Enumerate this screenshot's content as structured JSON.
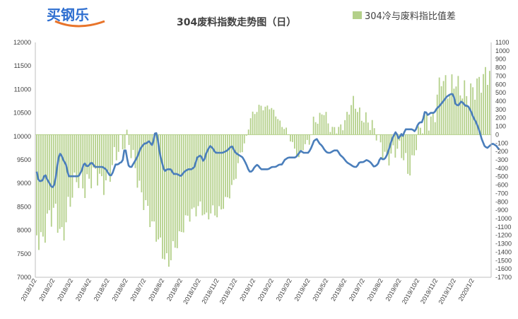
{
  "logo": {
    "text": "买钢乐",
    "color": "#2f6fd0"
  },
  "chart_data": {
    "type": "bar+line",
    "title": "304废料指数走势图（日）",
    "legend": {
      "position": "top-right",
      "entries": [
        "304冷与废料指比值差"
      ]
    },
    "grid": false,
    "x_tick_labels": [
      "2018/1/2",
      "2018/2/2",
      "2018/3/2",
      "2018/4/2",
      "2018/5/2",
      "2018/6/2",
      "2018/7/2",
      "2018/8/2",
      "2018/9/2",
      "2018/10/2",
      "2018/11/2",
      "2018/12/2",
      "2019/1/2",
      "2019/2/2",
      "2019/3/2",
      "2019/4/2",
      "2019/5/2",
      "2019/6/2",
      "2019/7/2",
      "2019/8/2",
      "2019/9/2",
      "2019/10/2",
      "2019/11/2",
      "2019/12/2",
      "2020/1/2"
    ],
    "left_axis": {
      "ylim": [
        7000,
        12000
      ],
      "ticks": [
        7000,
        7500,
        8000,
        8500,
        9000,
        9500,
        10000,
        10500,
        11000,
        11500,
        12000
      ]
    },
    "right_axis": {
      "ylim": [
        -1700,
        1100
      ],
      "ticks": [
        1100,
        1000,
        900,
        800,
        700,
        600,
        500,
        400,
        300,
        200,
        100,
        0,
        -100,
        -200,
        -300,
        -400,
        -500,
        -600,
        -700,
        -800,
        -900,
        -1000,
        -1100,
        -1200,
        -1300,
        -1400,
        -1500,
        -1600,
        -1700
      ]
    },
    "series": [
      {
        "name": "304冷与废料指比值差",
        "kind": "bar",
        "axis": "right",
        "color": "#b4d08a",
        "anchors": [
          [
            0,
            -1200
          ],
          [
            0.3,
            -1300
          ],
          [
            0.6,
            -1000
          ],
          [
            1.0,
            -900
          ],
          [
            1.4,
            -1250
          ],
          [
            1.8,
            -800
          ],
          [
            2.2,
            -500
          ],
          [
            2.6,
            -650
          ],
          [
            3.0,
            -500
          ],
          [
            3.3,
            -450
          ],
          [
            3.6,
            -600
          ],
          [
            3.9,
            -550
          ],
          [
            4.2,
            -300
          ],
          [
            4.5,
            -150
          ],
          [
            4.8,
            -100
          ],
          [
            5.0,
            -50
          ],
          [
            5.2,
            -200
          ],
          [
            5.4,
            -400
          ],
          [
            5.7,
            -700
          ],
          [
            6.0,
            -850
          ],
          [
            6.3,
            -1050
          ],
          [
            6.6,
            -1200
          ],
          [
            6.9,
            -1400
          ],
          [
            7.2,
            -1550
          ],
          [
            7.5,
            -1350
          ],
          [
            7.8,
            -1250
          ],
          [
            8.1,
            -1050
          ],
          [
            8.4,
            -950
          ],
          [
            8.7,
            -900
          ],
          [
            9.0,
            -850
          ],
          [
            9.3,
            -1000
          ],
          [
            9.6,
            -900
          ],
          [
            9.9,
            -950
          ],
          [
            10.2,
            -850
          ],
          [
            10.6,
            -700
          ],
          [
            10.9,
            -500
          ],
          [
            11.2,
            -200
          ],
          [
            11.5,
            -50
          ],
          [
            11.7,
            200
          ],
          [
            11.9,
            250
          ],
          [
            12.1,
            300
          ],
          [
            12.3,
            350
          ],
          [
            12.5,
            300
          ],
          [
            12.7,
            350
          ],
          [
            12.9,
            300
          ],
          [
            13.1,
            250
          ],
          [
            13.3,
            150
          ],
          [
            13.5,
            100
          ],
          [
            13.7,
            50
          ],
          [
            13.85,
            -20
          ],
          [
            14.0,
            -100
          ],
          [
            14.2,
            -200
          ],
          [
            14.4,
            -300
          ],
          [
            14.6,
            -150
          ],
          [
            14.8,
            -100
          ],
          [
            15.0,
            -80
          ],
          [
            15.2,
            200
          ],
          [
            15.4,
            150
          ],
          [
            15.6,
            250
          ],
          [
            15.8,
            280
          ],
          [
            16.0,
            120
          ],
          [
            16.2,
            50
          ],
          [
            16.4,
            80
          ],
          [
            16.6,
            60
          ],
          [
            16.8,
            120
          ],
          [
            17.0,
            200
          ],
          [
            17.2,
            350
          ],
          [
            17.4,
            400
          ],
          [
            17.6,
            300
          ],
          [
            17.8,
            200
          ],
          [
            18.0,
            200
          ],
          [
            18.2,
            150
          ],
          [
            18.4,
            100
          ],
          [
            18.6,
            40
          ],
          [
            18.8,
            -100
          ],
          [
            19.0,
            -200
          ],
          [
            19.2,
            -300
          ],
          [
            19.4,
            -250
          ],
          [
            19.6,
            -200
          ],
          [
            19.8,
            -150
          ],
          [
            20.0,
            -200
          ],
          [
            20.2,
            -300
          ],
          [
            20.4,
            -450
          ],
          [
            20.6,
            -350
          ],
          [
            20.8,
            -100
          ],
          [
            21.0,
            50
          ],
          [
            21.2,
            150
          ],
          [
            21.4,
            200
          ],
          [
            21.6,
            150
          ],
          [
            21.8,
            200
          ],
          [
            22.0,
            500
          ],
          [
            22.2,
            700
          ],
          [
            22.4,
            600
          ],
          [
            22.6,
            500
          ],
          [
            22.8,
            600
          ],
          [
            23.0,
            650
          ],
          [
            23.2,
            500
          ],
          [
            23.4,
            550
          ],
          [
            23.6,
            450
          ],
          [
            23.8,
            500
          ],
          [
            24.0,
            550
          ],
          [
            24.2,
            600
          ],
          [
            24.4,
            650
          ],
          [
            24.6,
            700
          ],
          [
            24.8,
            750
          ]
        ]
      },
      {
        "name": "304废料指数",
        "kind": "line",
        "axis": "left",
        "color": "#4a7ebb",
        "anchors": [
          [
            0,
            9250
          ],
          [
            0.1,
            9050
          ],
          [
            0.3,
            9050
          ],
          [
            0.45,
            9200
          ],
          [
            0.55,
            9100
          ],
          [
            0.7,
            9000
          ],
          [
            0.85,
            8900
          ],
          [
            1.0,
            9000
          ],
          [
            1.1,
            9300
          ],
          [
            1.2,
            9550
          ],
          [
            1.3,
            9650
          ],
          [
            1.45,
            9500
          ],
          [
            1.6,
            9400
          ],
          [
            1.75,
            9150
          ],
          [
            2.0,
            9150
          ],
          [
            2.3,
            9150
          ],
          [
            2.5,
            9300
          ],
          [
            2.6,
            9450
          ],
          [
            2.75,
            9350
          ],
          [
            2.9,
            9400
          ],
          [
            3.0,
            9450
          ],
          [
            3.2,
            9350
          ],
          [
            3.4,
            9350
          ],
          [
            3.6,
            9350
          ],
          [
            3.8,
            9300
          ],
          [
            3.95,
            9200
          ],
          [
            4.05,
            9150
          ],
          [
            4.2,
            9250
          ],
          [
            4.3,
            9400
          ],
          [
            4.45,
            9400
          ],
          [
            4.6,
            9450
          ],
          [
            4.7,
            9450
          ],
          [
            4.8,
            9700
          ],
          [
            4.9,
            9700
          ],
          [
            5.0,
            9400
          ],
          [
            5.1,
            9350
          ],
          [
            5.2,
            9350
          ],
          [
            5.35,
            9450
          ],
          [
            5.5,
            9550
          ],
          [
            5.7,
            9750
          ],
          [
            5.9,
            9850
          ],
          [
            6.0,
            9850
          ],
          [
            6.15,
            9900
          ],
          [
            6.25,
            9850
          ],
          [
            6.35,
            9800
          ],
          [
            6.5,
            10100
          ],
          [
            6.6,
            10050
          ],
          [
            6.7,
            9750
          ],
          [
            6.8,
            9550
          ],
          [
            6.9,
            9400
          ],
          [
            7.0,
            9250
          ],
          [
            7.15,
            9300
          ],
          [
            7.35,
            9300
          ],
          [
            7.5,
            9200
          ],
          [
            7.7,
            9200
          ],
          [
            7.9,
            9150
          ],
          [
            8.1,
            9250
          ],
          [
            8.3,
            9300
          ],
          [
            8.5,
            9300
          ],
          [
            8.65,
            9350
          ],
          [
            8.8,
            9550
          ],
          [
            9.0,
            9600
          ],
          [
            9.15,
            9450
          ],
          [
            9.3,
            9650
          ],
          [
            9.5,
            9800
          ],
          [
            9.65,
            9750
          ],
          [
            9.8,
            9650
          ],
          [
            10.0,
            9650
          ],
          [
            10.2,
            9650
          ],
          [
            10.45,
            9700
          ],
          [
            10.7,
            9800
          ],
          [
            10.9,
            9650
          ],
          [
            11.1,
            9600
          ],
          [
            11.3,
            9550
          ],
          [
            11.5,
            9400
          ],
          [
            11.65,
            9250
          ],
          [
            11.8,
            9250
          ],
          [
            11.95,
            9350
          ],
          [
            12.1,
            9400
          ],
          [
            12.3,
            9300
          ],
          [
            12.5,
            9300
          ],
          [
            12.7,
            9300
          ],
          [
            12.9,
            9350
          ],
          [
            13.1,
            9350
          ],
          [
            13.3,
            9400
          ],
          [
            13.45,
            9400
          ],
          [
            13.6,
            9500
          ],
          [
            13.8,
            9550
          ],
          [
            14.0,
            9550
          ],
          [
            14.2,
            9550
          ],
          [
            14.4,
            9650
          ],
          [
            14.5,
            9700
          ],
          [
            14.6,
            9650
          ],
          [
            14.75,
            9650
          ],
          [
            14.9,
            9650
          ],
          [
            15.05,
            9750
          ],
          [
            15.2,
            9900
          ],
          [
            15.35,
            9950
          ],
          [
            15.5,
            9850
          ],
          [
            15.65,
            9800
          ],
          [
            15.8,
            9700
          ],
          [
            15.95,
            9650
          ],
          [
            16.1,
            9650
          ],
          [
            16.3,
            9700
          ],
          [
            16.5,
            9700
          ],
          [
            16.65,
            9600
          ],
          [
            16.8,
            9550
          ],
          [
            17.0,
            9450
          ],
          [
            17.2,
            9400
          ],
          [
            17.4,
            9350
          ],
          [
            17.55,
            9350
          ],
          [
            17.7,
            9450
          ],
          [
            17.9,
            9450
          ],
          [
            18.1,
            9500
          ],
          [
            18.3,
            9450
          ],
          [
            18.5,
            9350
          ],
          [
            18.7,
            9400
          ],
          [
            18.85,
            9550
          ],
          [
            19.0,
            9500
          ],
          [
            19.15,
            9550
          ],
          [
            19.3,
            9700
          ],
          [
            19.45,
            9900
          ],
          [
            19.55,
            10000
          ],
          [
            19.7,
            10100
          ],
          [
            19.85,
            9950
          ],
          [
            20.0,
            10050
          ],
          [
            20.1,
            10000
          ],
          [
            20.2,
            10150
          ],
          [
            20.4,
            10150
          ],
          [
            20.6,
            10150
          ],
          [
            20.75,
            10100
          ],
          [
            20.9,
            10250
          ],
          [
            21.0,
            10300
          ],
          [
            21.15,
            10300
          ],
          [
            21.3,
            10550
          ],
          [
            21.45,
            10450
          ],
          [
            21.6,
            10500
          ],
          [
            21.8,
            10500
          ],
          [
            21.95,
            10600
          ],
          [
            22.1,
            10650
          ],
          [
            22.3,
            10750
          ],
          [
            22.5,
            10850
          ],
          [
            22.7,
            10900
          ],
          [
            22.85,
            10900
          ],
          [
            22.95,
            10700
          ],
          [
            23.1,
            10650
          ],
          [
            23.3,
            10750
          ],
          [
            23.5,
            10650
          ],
          [
            23.65,
            10650
          ],
          [
            23.8,
            10550
          ],
          [
            23.95,
            10400
          ],
          [
            24.1,
            10300
          ],
          [
            24.25,
            10150
          ],
          [
            24.4,
            9950
          ],
          [
            24.55,
            9800
          ],
          [
            24.7,
            9750
          ],
          [
            24.85,
            9800
          ],
          [
            25.0,
            9850
          ],
          [
            25.2,
            9800
          ],
          [
            25.4,
            9700
          ]
        ]
      }
    ]
  }
}
